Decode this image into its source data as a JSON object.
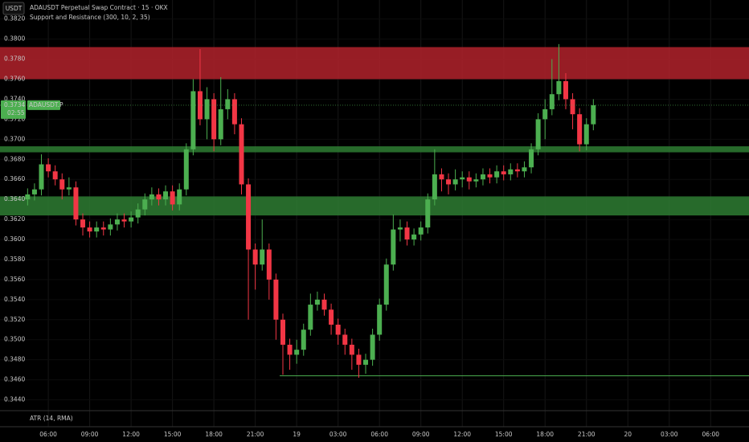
{
  "header": {
    "currency": "USDT",
    "lower_indicator": "ATR (14, RMA)"
  },
  "chart_data": {
    "type": "candlestick",
    "title": "ADAUSDT Perpetual Swap Contract · 15 · OKX",
    "subtitle": "Support and Resistance (300, 10, 2, 35)",
    "x": [
      4.5,
      5,
      5.5,
      6,
      6.5,
      7,
      7.5,
      8,
      8.5,
      9,
      9.5,
      10,
      10.5,
      11,
      11.5,
      12,
      12.5,
      13,
      13.5,
      14,
      14.5,
      15,
      15.5,
      16,
      16.5,
      17,
      17.5,
      18,
      18.5,
      19,
      19.5,
      20,
      20.5,
      21,
      21.5,
      22,
      22.5,
      23,
      23.5,
      24,
      24.5,
      25,
      25.5,
      26,
      26.5,
      27,
      27.5,
      28,
      28.5,
      29,
      29.5,
      30,
      30.5,
      31,
      31.5,
      32,
      32.5,
      33,
      33.5,
      34,
      34.5,
      35,
      35.5,
      36,
      36.5,
      37,
      37.5,
      38,
      38.5,
      39,
      39.5,
      40,
      40.5,
      41,
      41.5,
      42,
      42.5,
      43,
      43.5,
      44,
      44.5,
      45,
      45.5
    ],
    "open": [
      0.364,
      0.3645,
      0.365,
      0.3675,
      0.3668,
      0.366,
      0.365,
      0.3652,
      0.362,
      0.3612,
      0.3608,
      0.3612,
      0.361,
      0.3615,
      0.362,
      0.3618,
      0.3622,
      0.363,
      0.364,
      0.3645,
      0.364,
      0.3648,
      0.3635,
      0.365,
      0.369,
      0.3748,
      0.372,
      0.374,
      0.37,
      0.373,
      0.374,
      0.3715,
      0.3655,
      0.359,
      0.3575,
      0.359,
      0.356,
      0.352,
      0.3495,
      0.3485,
      0.349,
      0.351,
      0.3535,
      0.354,
      0.353,
      0.3515,
      0.3505,
      0.3495,
      0.3485,
      0.3475,
      0.348,
      0.3505,
      0.3535,
      0.3575,
      0.361,
      0.3612,
      0.36,
      0.3605,
      0.3612,
      0.364,
      0.3665,
      0.366,
      0.3655,
      0.366,
      0.3662,
      0.3658,
      0.366,
      0.3665,
      0.3662,
      0.3668,
      0.3665,
      0.367,
      0.3668,
      0.3672,
      0.369,
      0.372,
      0.373,
      0.3745,
      0.3758,
      0.374,
      0.3725,
      0.3695,
      0.3715
    ],
    "high": [
      0.3651,
      0.3656,
      0.3685,
      0.3681,
      0.3674,
      0.3666,
      0.3662,
      0.3658,
      0.3626,
      0.3618,
      0.3618,
      0.3618,
      0.3621,
      0.3626,
      0.3626,
      0.3628,
      0.3636,
      0.3646,
      0.3652,
      0.3651,
      0.3654,
      0.3654,
      0.3656,
      0.3696,
      0.376,
      0.379,
      0.3752,
      0.3746,
      0.3762,
      0.375,
      0.3746,
      0.3721,
      0.3661,
      0.3596,
      0.362,
      0.3596,
      0.3566,
      0.3526,
      0.3501,
      0.35,
      0.3516,
      0.3546,
      0.3548,
      0.3546,
      0.3536,
      0.3521,
      0.3511,
      0.3501,
      0.3491,
      0.3486,
      0.3511,
      0.3541,
      0.3581,
      0.3625,
      0.362,
      0.3618,
      0.3611,
      0.3618,
      0.3646,
      0.369,
      0.3671,
      0.3666,
      0.367,
      0.3668,
      0.3668,
      0.3666,
      0.3671,
      0.3671,
      0.3674,
      0.3674,
      0.3676,
      0.3676,
      0.3678,
      0.3696,
      0.3726,
      0.374,
      0.378,
      0.3795,
      0.3766,
      0.3746,
      0.3731,
      0.3721,
      0.374
    ],
    "low": [
      0.3634,
      0.3639,
      0.3644,
      0.3662,
      0.3654,
      0.364,
      0.3644,
      0.3614,
      0.3604,
      0.3602,
      0.3602,
      0.3604,
      0.3604,
      0.3609,
      0.3612,
      0.3612,
      0.3616,
      0.3624,
      0.3634,
      0.3634,
      0.3634,
      0.3629,
      0.3629,
      0.3644,
      0.3684,
      0.3714,
      0.37,
      0.3688,
      0.3694,
      0.372,
      0.3705,
      0.3645,
      0.352,
      0.355,
      0.3569,
      0.354,
      0.35,
      0.3465,
      0.347,
      0.3476,
      0.3484,
      0.3504,
      0.3529,
      0.3524,
      0.3505,
      0.3495,
      0.3485,
      0.347,
      0.3462,
      0.3466,
      0.3474,
      0.3499,
      0.3529,
      0.3569,
      0.3598,
      0.3594,
      0.3594,
      0.3599,
      0.3606,
      0.3634,
      0.3648,
      0.3645,
      0.3649,
      0.3652,
      0.365,
      0.3652,
      0.3654,
      0.3656,
      0.3656,
      0.3659,
      0.3659,
      0.3662,
      0.3662,
      0.3666,
      0.3684,
      0.37,
      0.3724,
      0.3739,
      0.373,
      0.371,
      0.3688,
      0.3689,
      0.3709
    ],
    "close": [
      0.3645,
      0.365,
      0.3675,
      0.3668,
      0.366,
      0.365,
      0.3652,
      0.362,
      0.3612,
      0.3608,
      0.3612,
      0.361,
      0.3615,
      0.362,
      0.3618,
      0.3622,
      0.363,
      0.364,
      0.3645,
      0.364,
      0.3648,
      0.3635,
      0.365,
      0.369,
      0.3748,
      0.372,
      0.374,
      0.37,
      0.373,
      0.374,
      0.3715,
      0.3655,
      0.359,
      0.3575,
      0.359,
      0.356,
      0.352,
      0.3495,
      0.3485,
      0.349,
      0.351,
      0.3535,
      0.354,
      0.353,
      0.3515,
      0.3505,
      0.3495,
      0.3485,
      0.3475,
      0.348,
      0.3505,
      0.3535,
      0.3575,
      0.361,
      0.3612,
      0.36,
      0.3605,
      0.3612,
      0.364,
      0.3665,
      0.366,
      0.3655,
      0.366,
      0.3662,
      0.3658,
      0.366,
      0.3665,
      0.3662,
      0.3668,
      0.3665,
      0.367,
      0.3668,
      0.3672,
      0.369,
      0.372,
      0.373,
      0.3745,
      0.3758,
      0.374,
      0.3725,
      0.3695,
      0.3715,
      0.3734
    ],
    "up_color": "#4caf50",
    "down_color": "#f23645",
    "xlim": [
      2.5,
      56.78
    ],
    "xticks": [
      {
        "value": 6,
        "label": "06:00"
      },
      {
        "value": 9,
        "label": "09:00"
      },
      {
        "value": 12,
        "label": "12:00"
      },
      {
        "value": 15,
        "label": "15:00"
      },
      {
        "value": 18,
        "label": "18:00"
      },
      {
        "value": 21,
        "label": "21:00"
      },
      {
        "value": 24,
        "label": "19"
      },
      {
        "value": 27,
        "label": "03:00"
      },
      {
        "value": 30,
        "label": "06:00"
      },
      {
        "value": 33,
        "label": "09:00"
      },
      {
        "value": 36,
        "label": "12:00"
      },
      {
        "value": 39,
        "label": "15:00"
      },
      {
        "value": 42,
        "label": "18:00"
      },
      {
        "value": 45,
        "label": "21:00"
      },
      {
        "value": 48,
        "label": "20"
      },
      {
        "value": 51,
        "label": "03:00"
      },
      {
        "value": 54,
        "label": "06:00"
      }
    ],
    "ylim": [
      0.343,
      0.3839
    ],
    "yticks": [
      {
        "value": 0.344,
        "label": "0.3440"
      },
      {
        "value": 0.346,
        "label": "0.3460"
      },
      {
        "value": 0.348,
        "label": "0.3480"
      },
      {
        "value": 0.35,
        "label": "0.3500"
      },
      {
        "value": 0.352,
        "label": "0.3520"
      },
      {
        "value": 0.354,
        "label": "0.3540"
      },
      {
        "value": 0.356,
        "label": "0.3560"
      },
      {
        "value": 0.358,
        "label": "0.3580"
      },
      {
        "value": 0.36,
        "label": "0.3600"
      },
      {
        "value": 0.362,
        "label": "0.3620"
      },
      {
        "value": 0.364,
        "label": "0.3640"
      },
      {
        "value": 0.366,
        "label": "0.3660"
      },
      {
        "value": 0.368,
        "label": "0.3680"
      },
      {
        "value": 0.37,
        "label": "0.3700"
      },
      {
        "value": 0.372,
        "label": "0.3720"
      },
      {
        "value": 0.374,
        "label": "0.3740"
      },
      {
        "value": 0.376,
        "label": "0.3760"
      },
      {
        "value": 0.378,
        "label": "0.3780"
      },
      {
        "value": 0.38,
        "label": "0.3800"
      },
      {
        "value": 0.382,
        "label": "0.3820"
      }
    ],
    "grid": true,
    "zones": [
      {
        "low": 0.376,
        "high": 0.3792,
        "color": "#b2222c"
      },
      {
        "low": 0.3687,
        "high": 0.3693,
        "color": "#2e7d32"
      },
      {
        "low": 0.3624,
        "high": 0.3643,
        "color": "#2e7d32"
      }
    ],
    "support_line": {
      "value": 0.3464,
      "start": 22.77,
      "color": "#4caf50"
    },
    "last_price": {
      "value": 0.3734,
      "countdown": "02:55",
      "symbol": "ADAUSDT.P"
    }
  }
}
